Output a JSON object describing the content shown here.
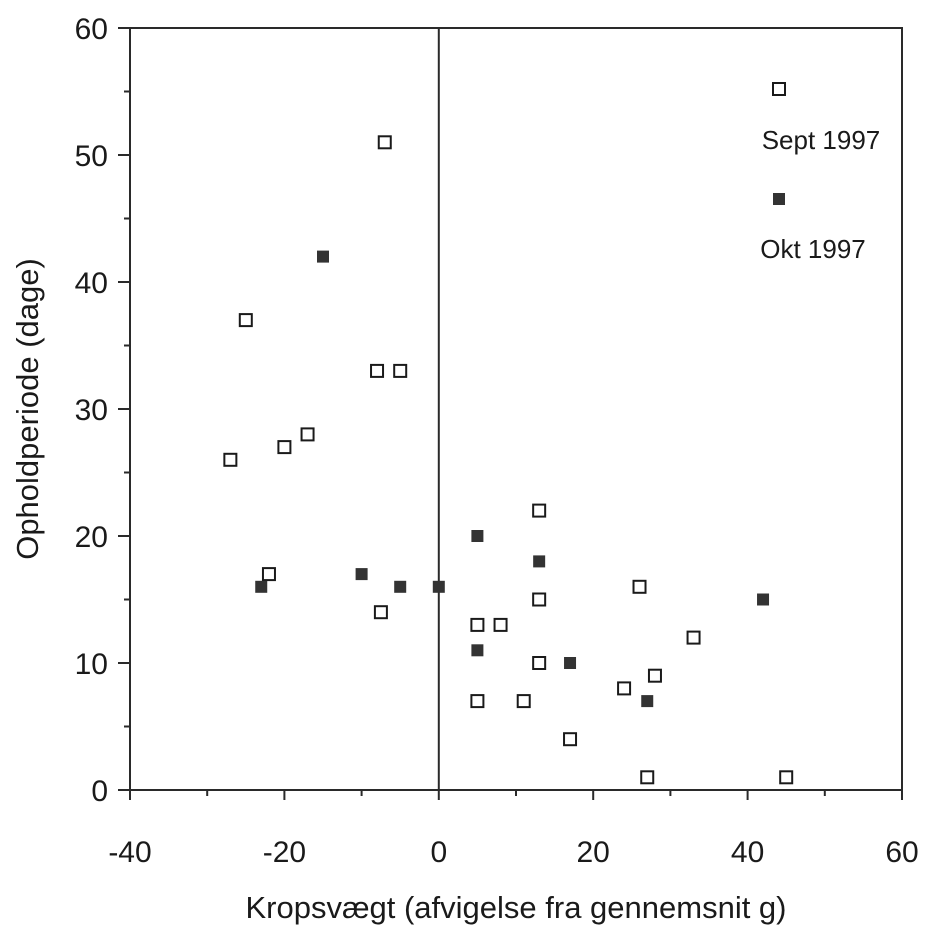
{
  "chart_data": {
    "type": "scatter",
    "title": "",
    "xlabel": "Kropsvægt (afvigelse fra gennemsnit g)",
    "ylabel": "Opholdperiode (dage)",
    "xlim": [
      -40,
      60
    ],
    "ylim": [
      0,
      60
    ],
    "x_ticks": [
      "-40",
      "-20",
      "0",
      "20",
      "40",
      "60"
    ],
    "y_ticks": [
      "0",
      "10",
      "20",
      "30",
      "40",
      "50",
      "60"
    ],
    "vertical_reference_line_x": 0,
    "grid": false,
    "legend_position": "top-right",
    "series": [
      {
        "name": "Sept 1997",
        "marker": "open-square",
        "color": "#1a1a1a",
        "points": [
          {
            "x": -7,
            "y": 51
          },
          {
            "x": -25,
            "y": 37
          },
          {
            "x": -8,
            "y": 33
          },
          {
            "x": -5,
            "y": 33
          },
          {
            "x": -17,
            "y": 28
          },
          {
            "x": -20,
            "y": 27
          },
          {
            "x": -27,
            "y": 26
          },
          {
            "x": -22,
            "y": 17
          },
          {
            "x": -7.5,
            "y": 14
          },
          {
            "x": 13,
            "y": 22
          },
          {
            "x": 26,
            "y": 16
          },
          {
            "x": 13,
            "y": 15
          },
          {
            "x": 5,
            "y": 13
          },
          {
            "x": 8,
            "y": 13
          },
          {
            "x": 33,
            "y": 12
          },
          {
            "x": 13,
            "y": 10
          },
          {
            "x": 28,
            "y": 9
          },
          {
            "x": 24,
            "y": 8
          },
          {
            "x": 5,
            "y": 7
          },
          {
            "x": 11,
            "y": 7
          },
          {
            "x": 17,
            "y": 4
          },
          {
            "x": 27,
            "y": 1
          },
          {
            "x": 45,
            "y": 1
          }
        ]
      },
      {
        "name": "Okt 1997",
        "marker": "filled-square",
        "color": "#333333",
        "points": [
          {
            "x": -15,
            "y": 42
          },
          {
            "x": 5,
            "y": 20
          },
          {
            "x": 13,
            "y": 18
          },
          {
            "x": -10,
            "y": 17
          },
          {
            "x": -23,
            "y": 16
          },
          {
            "x": -5,
            "y": 16
          },
          {
            "x": 0,
            "y": 16
          },
          {
            "x": 42,
            "y": 15
          },
          {
            "x": 5,
            "y": 11
          },
          {
            "x": 17,
            "y": 10
          },
          {
            "x": 27,
            "y": 7
          }
        ]
      }
    ]
  }
}
